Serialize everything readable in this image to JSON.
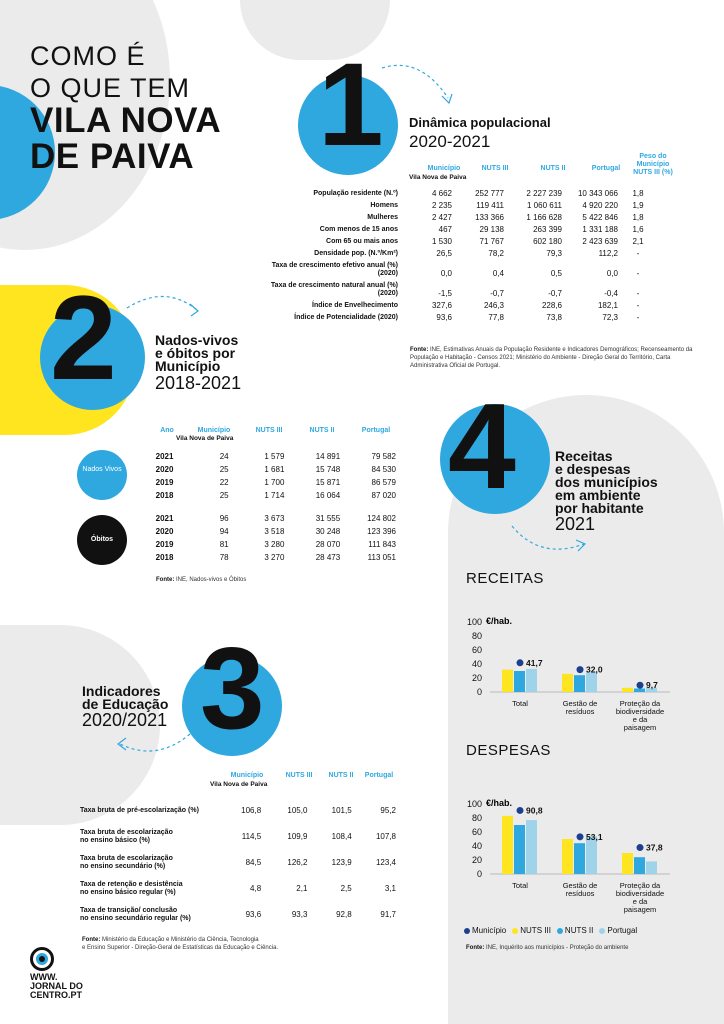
{
  "title": {
    "line1": "COMO É",
    "line2": "O QUE TEM",
    "line3": "VILA NOVA",
    "line4": "DE PAIVA"
  },
  "colors": {
    "municipio": "#1d3f8f",
    "nuts3": "#ffe51f",
    "nuts2": "#2fa8e0",
    "portugal": "#9fd3ea",
    "accent": "#2fa8e0"
  },
  "s1": {
    "number": "1",
    "title": "Dinâmica populacional",
    "years": "2020-2021",
    "headers": [
      "Município",
      "NUTS III",
      "NUTS II",
      "Portugal",
      "Peso do Município NUTS III (%)"
    ],
    "subheader": "Vila Nova de Paiva",
    "rows": [
      {
        "label": "População residente (N.º)",
        "v": [
          "4 662",
          "252 777",
          "2 227 239",
          "10 343 066",
          "1,8"
        ]
      },
      {
        "label": "Homens",
        "v": [
          "2 235",
          "119 411",
          "1 060 611",
          "4 920 220",
          "1,9"
        ]
      },
      {
        "label": "Mulheres",
        "v": [
          "2 427",
          "133 366",
          "1 166 628",
          "5 422 846",
          "1,8"
        ]
      },
      {
        "label": "Com menos de 15 anos",
        "v": [
          "467",
          "29 138",
          "263 399",
          "1 331 188",
          "1,6"
        ]
      },
      {
        "label": "Com 65 ou mais anos",
        "v": [
          "1 530",
          "71 767",
          "602 180",
          "2 423 639",
          "2,1"
        ]
      },
      {
        "label": "Densidade pop. (N.º/Km²)",
        "v": [
          "26,5",
          "78,2",
          "79,3",
          "112,2",
          "-"
        ]
      },
      {
        "label": "Taxa de crescimento efetivo anual (%) (2020)",
        "v": [
          "0,0",
          "0,4",
          "0,5",
          "0,0",
          "-"
        ]
      },
      {
        "label": "Taxa de crescimento natural anual (%) (2020)",
        "v": [
          "-1,5",
          "-0,7",
          "-0,7",
          "-0,4",
          "-"
        ]
      },
      {
        "label": "Índice de Envelhecimento",
        "v": [
          "327,6",
          "246,3",
          "228,6",
          "182,1",
          "-"
        ]
      },
      {
        "label": "Índice de Potencialidade (2020)",
        "v": [
          "93,6",
          "77,8",
          "73,8",
          "72,3",
          "-"
        ]
      }
    ],
    "source_label": "Fonte:",
    "source_text": "INE, Estimativas Anuais da População Residente e Indicadores Demográficos; Recenseamento da População e Habitação - Censos 2021; Ministério do Ambiente - Direção Geral do Território, Carta Administrativa Oficial de Portugal."
  },
  "s2": {
    "number": "2",
    "title_l1": "Nados-vivos",
    "title_l2": "e óbitos por",
    "title_l3": "Município",
    "years": "2018-2021",
    "headers": [
      "Ano",
      "Município",
      "NUTS III",
      "NUTS II",
      "Portugal"
    ],
    "subheader": "Vila Nova de Paiva",
    "group1": "Nados Vivos",
    "group2": "Óbitos",
    "rows1": [
      [
        "2021",
        "24",
        "1 579",
        "14 891",
        "79 582"
      ],
      [
        "2020",
        "25",
        "1 681",
        "15 748",
        "84 530"
      ],
      [
        "2019",
        "22",
        "1 700",
        "15 871",
        "86 579"
      ],
      [
        "2018",
        "25",
        "1 714",
        "16 064",
        "87 020"
      ]
    ],
    "rows2": [
      [
        "2021",
        "96",
        "3 673",
        "31 555",
        "124 802"
      ],
      [
        "2020",
        "94",
        "3 518",
        "30 248",
        "123 396"
      ],
      [
        "2019",
        "81",
        "3 280",
        "28 070",
        "111 843"
      ],
      [
        "2018",
        "78",
        "3 270",
        "28 473",
        "113 051"
      ]
    ],
    "source_label": "Fonte:",
    "source_text": "INE, Nados-vivos e Óbitos"
  },
  "s3": {
    "number": "3",
    "title_l1": "Indicadores",
    "title_l2": "de Educação",
    "years": "2020/2021",
    "headers": [
      "Município",
      "NUTS III",
      "NUTS II",
      "Portugal"
    ],
    "subheader": "Vila Nova de Paiva",
    "rows": [
      {
        "l1": "Taxa bruta de pré-escolarização (%)",
        "l2": "",
        "v": [
          "106,8",
          "105,0",
          "101,5",
          "95,2"
        ]
      },
      {
        "l1": "Taxa bruta de escolarização",
        "l2": "no ensino básico (%)",
        "v": [
          "114,5",
          "109,9",
          "108,4",
          "107,8"
        ]
      },
      {
        "l1": "Taxa bruta de escolarização",
        "l2": "no ensino secundário (%)",
        "v": [
          "84,5",
          "126,2",
          "123,9",
          "123,4"
        ]
      },
      {
        "l1": "Taxa de retenção e desistência",
        "l2": "no ensino básico regular (%)",
        "v": [
          "4,8",
          "2,1",
          "2,5",
          "3,1"
        ]
      },
      {
        "l1": "Taxa de transição/ conclusão",
        "l2": "no ensino secundário regular (%)",
        "v": [
          "93,6",
          "93,3",
          "92,8",
          "91,7"
        ]
      }
    ],
    "source_label": "Fonte:",
    "source_l1": "Ministério da Educação e Ministério da Ciência, Tecnologia",
    "source_l2": "e Ensino Superior - Direção-Geral de Estatísticas da Educação e Ciência."
  },
  "s4": {
    "number": "4",
    "title_l1": "Receitas",
    "title_l2": "e despesas",
    "title_l3": "dos municípios",
    "title_l4": "em ambiente",
    "title_l5": "por habitante",
    "year": "2021",
    "source_label": "Fonte:",
    "source_text": "INE, Inquérito aos municípios - Proteção do ambiente"
  },
  "legend": [
    "Município",
    "NUTS III",
    "NUTS II",
    "Portugal"
  ],
  "chart_data": [
    {
      "type": "bar",
      "title": "RECEITAS",
      "ylabel": "€/hab.",
      "ylim": [
        0,
        100
      ],
      "yticks": [
        0,
        20,
        40,
        60,
        80,
        100
      ],
      "categories": [
        "Total",
        "Gestão de resíduos",
        "Proteção da biodiversidade e da paisagem"
      ],
      "series": [
        {
          "name": "Município",
          "values": [
            41.7,
            32.0,
            9.7
          ]
        },
        {
          "name": "NUTS III",
          "values": [
            32,
            26,
            6
          ]
        },
        {
          "name": "NUTS II",
          "values": [
            30,
            24,
            5
          ]
        },
        {
          "name": "Portugal",
          "values": [
            33,
            28,
            6
          ]
        }
      ],
      "labels": [
        "41,7",
        "32,0",
        "9,7"
      ]
    },
    {
      "type": "bar",
      "title": "DESPESAS",
      "ylabel": "€/hab.",
      "ylim": [
        0,
        100
      ],
      "yticks": [
        0,
        20,
        40,
        60,
        80,
        100
      ],
      "categories": [
        "Total",
        "Gestão de resíduos",
        "Proteção da biodiversidade e da paisagem"
      ],
      "series": [
        {
          "name": "Município",
          "values": [
            90.8,
            53.1,
            37.8
          ]
        },
        {
          "name": "NUTS III",
          "values": [
            83,
            50,
            30
          ]
        },
        {
          "name": "NUTS II",
          "values": [
            70,
            44,
            24
          ]
        },
        {
          "name": "Portugal",
          "values": [
            77,
            54,
            18
          ]
        }
      ],
      "labels": [
        "90,8",
        "53,1",
        "37,8"
      ]
    }
  ],
  "logo": {
    "l1": "WWW.",
    "l2": "JORNAL DO",
    "l3": "CENTRO.PT"
  }
}
